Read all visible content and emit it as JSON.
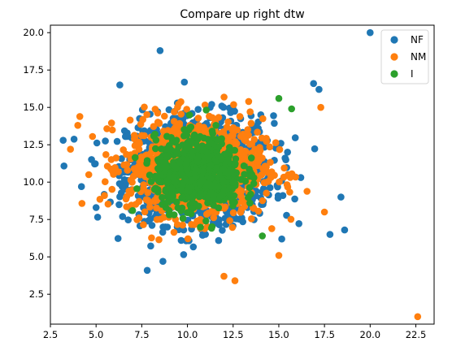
{
  "chart_data": {
    "type": "scatter",
    "title": "Compare up right dtw",
    "xlabel": "",
    "ylabel": "",
    "xlim": [
      2.5,
      23.5
    ],
    "ylim": [
      0.5,
      20.5
    ],
    "xticks": [
      2.5,
      5.0,
      7.5,
      10.0,
      12.5,
      15.0,
      17.5,
      20.0,
      22.5
    ],
    "xtick_labels": [
      "2.5",
      "5.0",
      "7.5",
      "10.0",
      "12.5",
      "15.0",
      "17.5",
      "20.0",
      "22.5"
    ],
    "yticks": [
      2.5,
      5.0,
      7.5,
      10.0,
      12.5,
      15.0,
      17.5,
      20.0
    ],
    "ytick_labels": [
      "2.5",
      "5.0",
      "7.5",
      "10.0",
      "12.5",
      "15.0",
      "17.5",
      "20.0"
    ],
    "grid": false,
    "legend_position": "top-right",
    "series": [
      {
        "name": "NF",
        "color": "#1f77b4",
        "cloud": {
          "x": [
            3.2,
            18.6
          ],
          "y": [
            4.1,
            18.8
          ],
          "count": 1100,
          "center": [
            10.7,
            10.8
          ],
          "spread": [
            3.2,
            2.9
          ]
        },
        "points": [
          {
            "x": 3.2,
            "y": 12.8
          },
          {
            "x": 8.5,
            "y": 18.8
          },
          {
            "x": 20.0,
            "y": 20.0
          },
          {
            "x": 18.4,
            "y": 9.0
          },
          {
            "x": 18.6,
            "y": 6.8
          },
          {
            "x": 7.8,
            "y": 4.1
          },
          {
            "x": 4.2,
            "y": 9.7
          },
          {
            "x": 16.9,
            "y": 16.6
          },
          {
            "x": 17.2,
            "y": 16.2
          },
          {
            "x": 6.3,
            "y": 16.5
          },
          {
            "x": 5.0,
            "y": 8.3
          },
          {
            "x": 17.8,
            "y": 6.5
          }
        ]
      },
      {
        "name": "NM",
        "color": "#ff7f0e",
        "cloud": {
          "x": [
            3.5,
            17.6
          ],
          "y": [
            3.4,
            16.1
          ],
          "count": 1100,
          "center": [
            10.4,
            11.0
          ],
          "spread": [
            3.0,
            2.6
          ]
        },
        "points": [
          {
            "x": 22.6,
            "y": 1.0
          },
          {
            "x": 3.6,
            "y": 12.2
          },
          {
            "x": 4.0,
            "y": 13.8
          },
          {
            "x": 12.6,
            "y": 3.4
          },
          {
            "x": 12.0,
            "y": 3.7
          },
          {
            "x": 15.0,
            "y": 5.1
          },
          {
            "x": 17.5,
            "y": 8.0
          },
          {
            "x": 17.3,
            "y": 15.0
          },
          {
            "x": 4.6,
            "y": 10.5
          }
        ]
      },
      {
        "name": "I",
        "color": "#2ca02c",
        "cloud": {
          "x": [
            7.0,
            15.8
          ],
          "y": [
            6.5,
            15.8
          ],
          "count": 700,
          "center": [
            10.6,
            10.6
          ],
          "spread": [
            1.9,
            1.9
          ]
        },
        "points": [
          {
            "x": 15.0,
            "y": 15.6
          },
          {
            "x": 15.7,
            "y": 14.9
          },
          {
            "x": 14.1,
            "y": 6.4
          },
          {
            "x": 7.0,
            "y": 8.1
          }
        ]
      }
    ]
  }
}
